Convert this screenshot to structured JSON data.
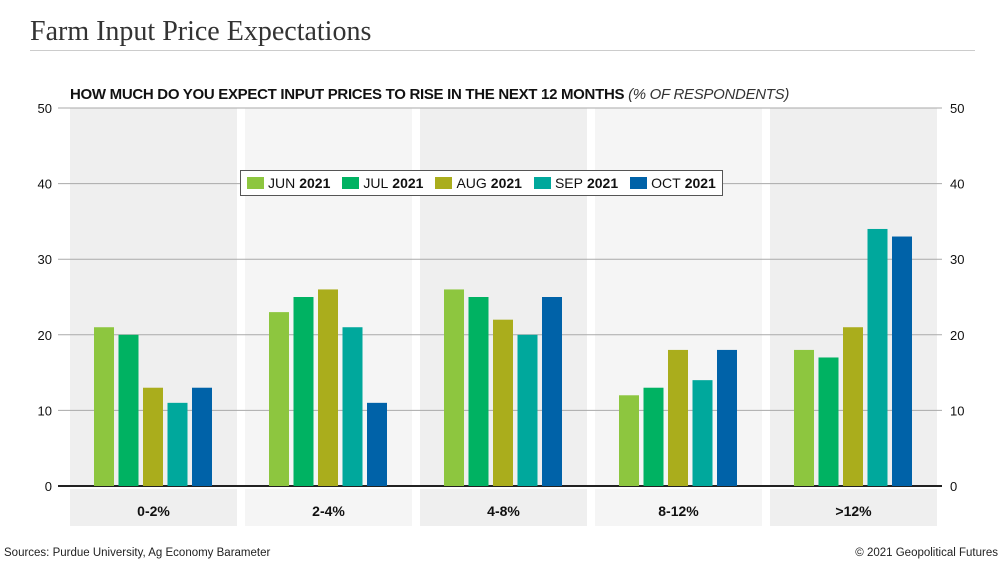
{
  "title": "Farm Input Price Expectations",
  "footer": {
    "source": "Sources: Purdue University, Ag Economy Barameter",
    "copyright": "© 2021 Geopolitical Futures"
  },
  "chart_data": {
    "type": "bar",
    "title": "HOW MUCH DO YOU EXPECT INPUT PRICES TO RISE IN THE NEXT 12 MONTHS",
    "title_note": "(% OF RESPONDENTS)",
    "categories": [
      "0-2%",
      "2-4%",
      "4-8%",
      "8-12%",
      ">12%"
    ],
    "series": [
      {
        "name": "JUN",
        "year": "2021",
        "color": "#8dc63f",
        "values": [
          21,
          23,
          26,
          12,
          18
        ]
      },
      {
        "name": "JUL",
        "year": "2021",
        "color": "#00b262",
        "values": [
          20,
          25,
          25,
          13,
          17
        ]
      },
      {
        "name": "AUG",
        "year": "2021",
        "color": "#aaad1c",
        "values": [
          13,
          26,
          22,
          18,
          21
        ]
      },
      {
        "name": "SEP",
        "year": "2021",
        "color": "#00a89c",
        "values": [
          11,
          21,
          20,
          14,
          34
        ]
      },
      {
        "name": "OCT",
        "year": "2021",
        "color": "#0062a8",
        "values": [
          13,
          11,
          25,
          18,
          33
        ]
      }
    ],
    "yticks": [
      "0",
      "10",
      "20",
      "30",
      "40",
      "50"
    ],
    "ylim": [
      0,
      50
    ],
    "grid": true,
    "legend_placement": "top-center"
  }
}
